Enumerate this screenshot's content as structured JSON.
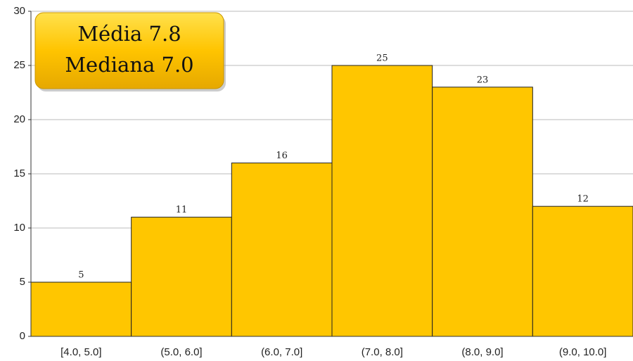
{
  "chart_data": {
    "type": "bar",
    "categories": [
      "[4.0, 5.0]",
      "(5.0, 6.0]",
      "(6.0, 7.0]",
      "(7.0, 8.0]",
      "(8.0, 9.0]",
      "(9.0, 10.0]"
    ],
    "values": [
      5,
      11,
      16,
      25,
      23,
      12
    ],
    "color": "#ffc600",
    "ylim": [
      0,
      30
    ],
    "yticks": [
      0,
      5,
      10,
      15,
      20,
      25,
      30
    ],
    "grid": true,
    "annotations": [
      "Média 7.8",
      "Mediana 7.0"
    ]
  }
}
